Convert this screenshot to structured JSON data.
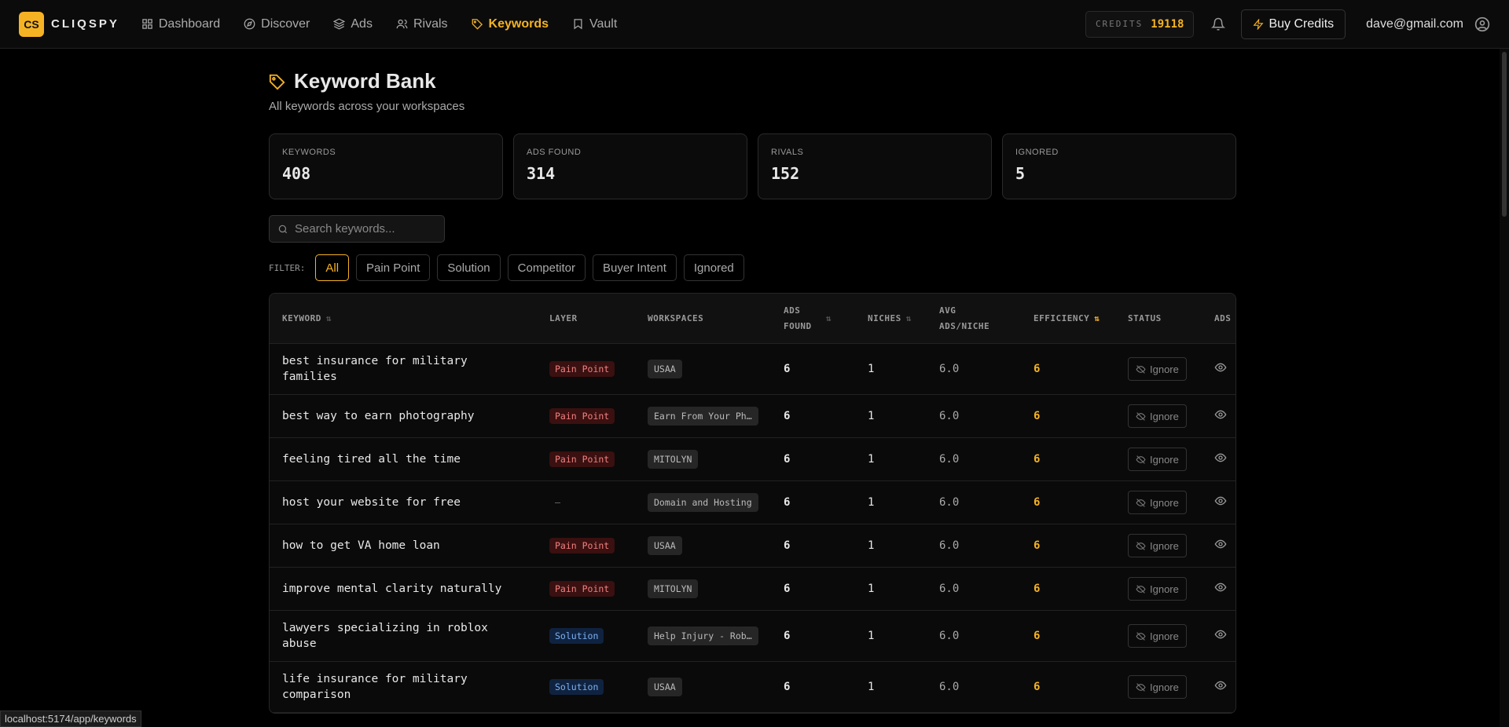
{
  "nav": {
    "logo_badge": "CS",
    "logo_text": "CLIQSPY",
    "links": [
      "Dashboard",
      "Discover",
      "Ads",
      "Rivals",
      "Keywords",
      "Vault"
    ],
    "credits_label": "CREDITS",
    "credits_value": "19118",
    "buy": "Buy Credits",
    "email": "dave@gmail.com"
  },
  "header": {
    "title": "Keyword Bank",
    "subtitle": "All keywords across your workspaces"
  },
  "stats": [
    {
      "label": "KEYWORDS",
      "value": "408"
    },
    {
      "label": "ADS FOUND",
      "value": "314"
    },
    {
      "label": "RIVALS",
      "value": "152"
    },
    {
      "label": "IGNORED",
      "value": "5"
    }
  ],
  "search_placeholder": "Search keywords...",
  "filter": {
    "label": "FILTER:",
    "options": [
      "All",
      "Pain Point",
      "Solution",
      "Competitor",
      "Buyer Intent",
      "Ignored"
    ]
  },
  "table": {
    "columns": [
      "KEYWORD",
      "LAYER",
      "WORKSPACES",
      "ADS FOUND",
      "NICHES",
      "AVG ADS/NICHE",
      "EFFICIENCY",
      "STATUS",
      "ADS"
    ],
    "rows": [
      [
        "best insurance for military families",
        "Pain Point",
        "USAA",
        "6",
        "1",
        "6.0",
        "6",
        "Ignore"
      ],
      [
        "best way to earn photography",
        "Pain Point",
        "Earn From Your Ph…",
        "6",
        "1",
        "6.0",
        "6",
        "Ignore"
      ],
      [
        "feeling tired all the time",
        "Pain Point",
        "MITOLYN",
        "6",
        "1",
        "6.0",
        "6",
        "Ignore"
      ],
      [
        "host your website for free",
        "—",
        "Domain and Hosting",
        "6",
        "1",
        "6.0",
        "6",
        "Ignore"
      ],
      [
        "how to get VA home loan",
        "Pain Point",
        "USAA",
        "6",
        "1",
        "6.0",
        "6",
        "Ignore"
      ],
      [
        "improve mental clarity naturally",
        "Pain Point",
        "MITOLYN",
        "6",
        "1",
        "6.0",
        "6",
        "Ignore"
      ],
      [
        "lawyers specializing in roblox abuse",
        "Solution",
        "Help Injury - Rob…",
        "6",
        "1",
        "6.0",
        "6",
        "Ignore"
      ],
      [
        "life insurance for military comparison",
        "Solution",
        "USAA",
        "6",
        "1",
        "6.0",
        "6",
        "Ignore"
      ]
    ]
  },
  "status_bar": "localhost:5174/app/keywords"
}
